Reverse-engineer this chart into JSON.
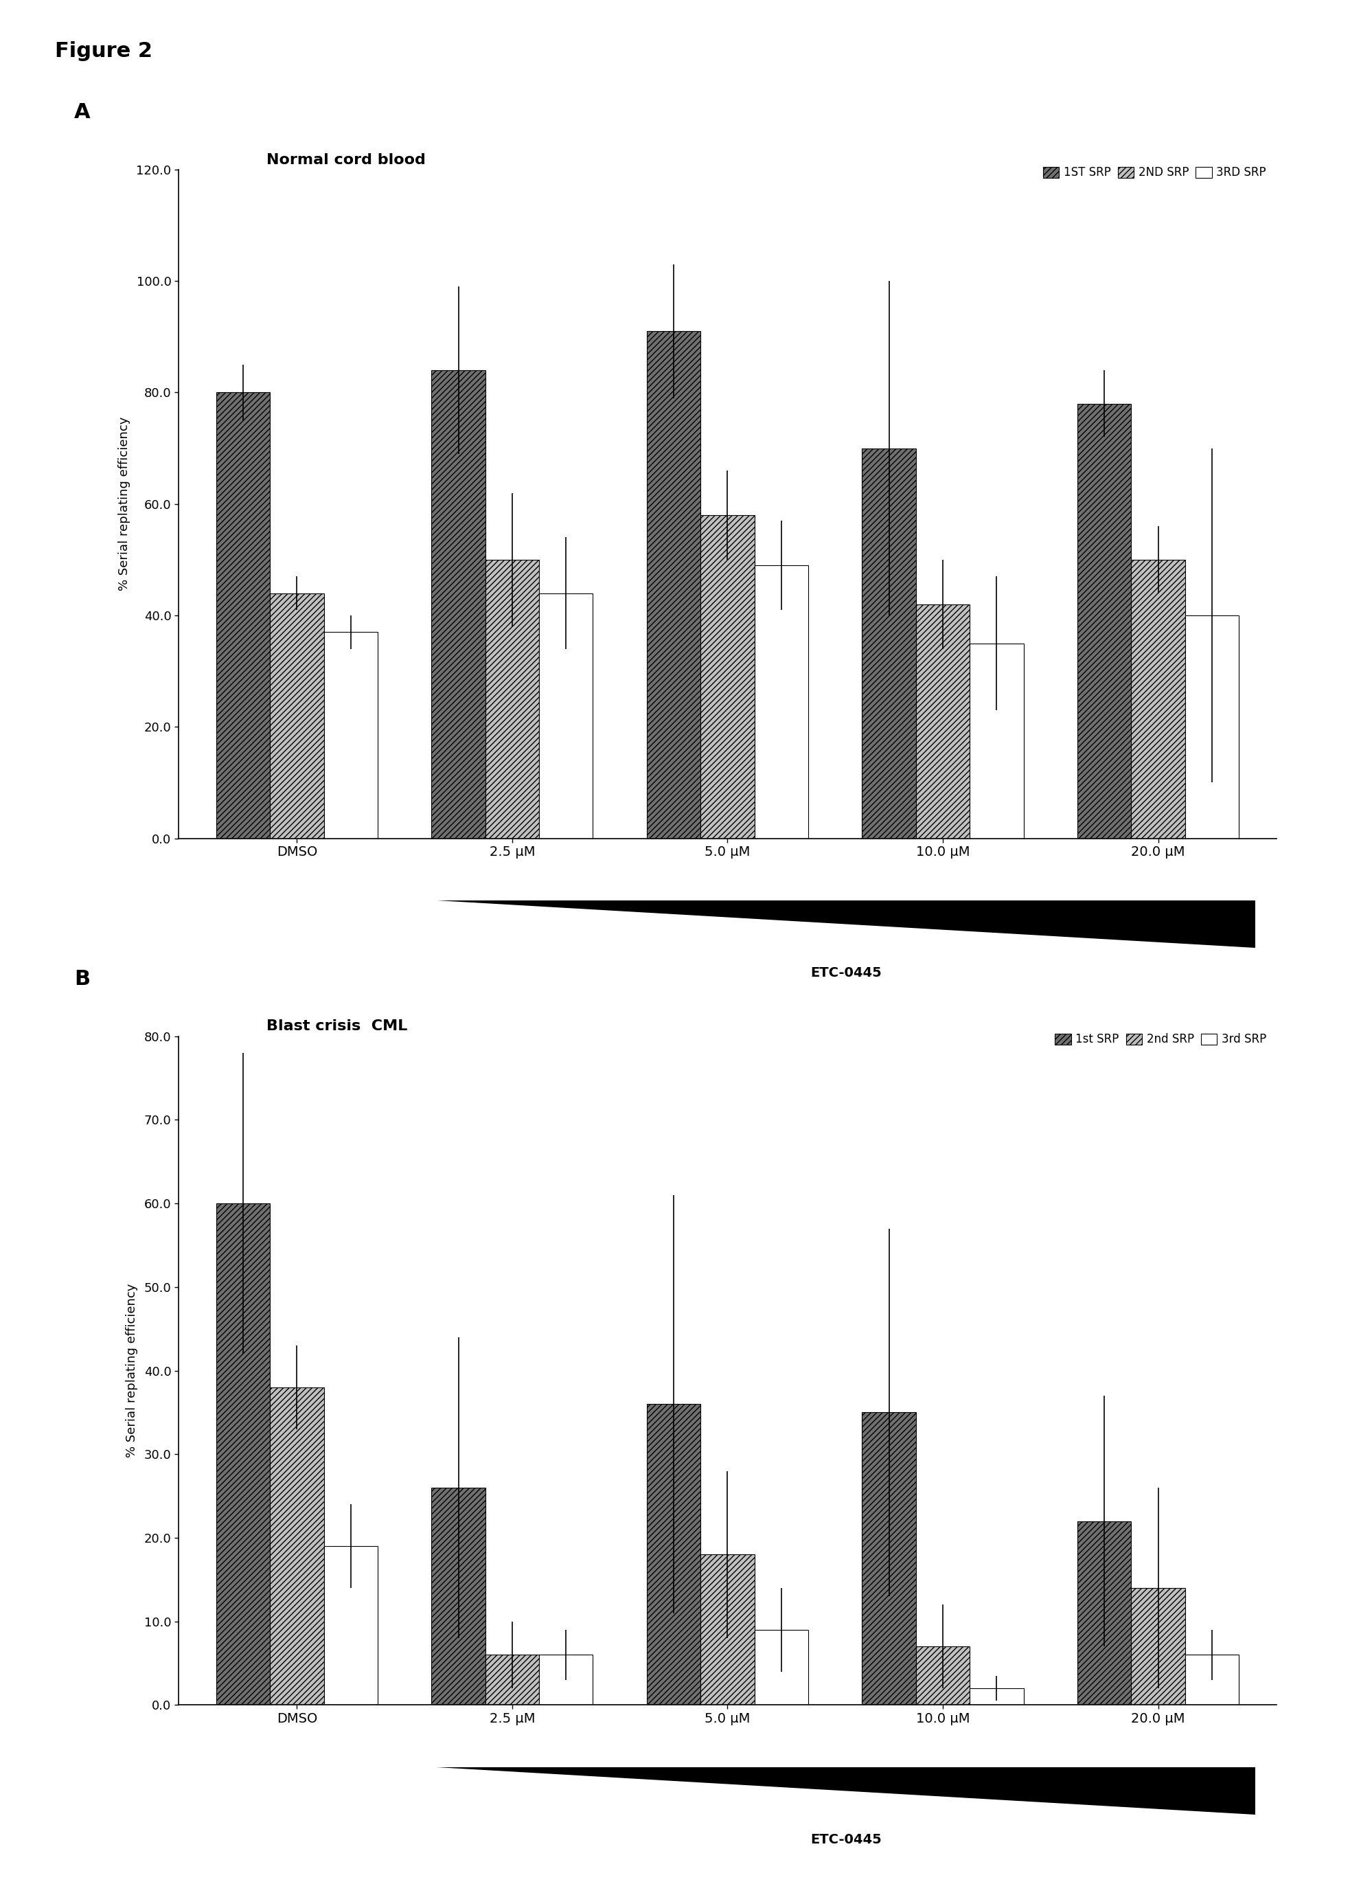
{
  "figure_title": "Figure 2",
  "panel_A": {
    "title": "Normal cord blood",
    "ylabel": "% Serial replating efficiency",
    "ylim": [
      0,
      120.0
    ],
    "yticks": [
      0.0,
      20.0,
      40.0,
      60.0,
      80.0,
      100.0,
      120.0
    ],
    "categories": [
      "DMSO",
      "2.5 μM",
      "5.0 μM",
      "10.0 μM",
      "20.0 μM"
    ],
    "series": [
      {
        "name": "1ST SRP",
        "values": [
          80.0,
          84.0,
          91.0,
          70.0,
          78.0
        ],
        "errors": [
          5.0,
          15.0,
          12.0,
          30.0,
          6.0
        ],
        "color": "#707070",
        "hatch": "////"
      },
      {
        "name": "2ND SRP",
        "values": [
          44.0,
          50.0,
          58.0,
          42.0,
          50.0
        ],
        "errors": [
          3.0,
          12.0,
          8.0,
          8.0,
          6.0
        ],
        "color": "#c0c0c0",
        "hatch": "////"
      },
      {
        "name": "3RD SRP",
        "values": [
          37.0,
          44.0,
          49.0,
          35.0,
          40.0
        ],
        "errors": [
          3.0,
          10.0,
          8.0,
          12.0,
          30.0
        ],
        "color": "#ffffff",
        "hatch": ""
      }
    ],
    "legend_labels": [
      "1ST SRP",
      "2ND SRP",
      "3RD SRP"
    ],
    "xlabel": "ETC-0445"
  },
  "panel_B": {
    "title": "Blast crisis  CML",
    "ylabel": "% Serial replating efficiency",
    "ylim": [
      0,
      80.0
    ],
    "yticks": [
      0.0,
      10.0,
      20.0,
      30.0,
      40.0,
      50.0,
      60.0,
      70.0,
      80.0
    ],
    "categories": [
      "DMSO",
      "2.5 μM",
      "5.0 μM",
      "10.0 μM",
      "20.0 μM"
    ],
    "series": [
      {
        "name": "1st SRP",
        "values": [
          60.0,
          26.0,
          36.0,
          35.0,
          22.0
        ],
        "errors": [
          18.0,
          18.0,
          25.0,
          22.0,
          15.0
        ],
        "color": "#707070",
        "hatch": "////"
      },
      {
        "name": "2nd SRP",
        "values": [
          38.0,
          6.0,
          18.0,
          7.0,
          14.0
        ],
        "errors": [
          5.0,
          4.0,
          10.0,
          5.0,
          12.0
        ],
        "color": "#c0c0c0",
        "hatch": "////"
      },
      {
        "name": "3rd SRP",
        "values": [
          19.0,
          6.0,
          9.0,
          2.0,
          6.0
        ],
        "errors": [
          5.0,
          3.0,
          5.0,
          1.5,
          3.0
        ],
        "color": "#ffffff",
        "hatch": ""
      }
    ],
    "legend_labels": [
      "1st SRP",
      "2nd SRP",
      "3rd SRP"
    ],
    "xlabel": "ETC-0445"
  },
  "bar_width": 0.25,
  "background_color": "#ffffff",
  "text_color": "#000000",
  "edge_color": "#000000"
}
